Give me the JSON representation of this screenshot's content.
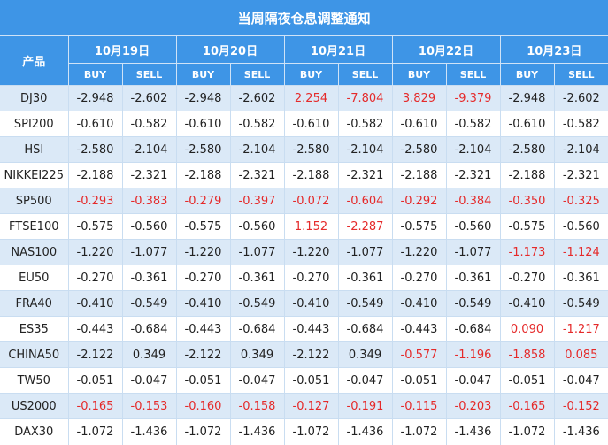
{
  "title": "当周隔夜仓息调整通知",
  "product_header": "产品",
  "buy_label": "BUY",
  "sell_label": "SELL",
  "dates": [
    "10月19日",
    "10月20日",
    "10月21日",
    "10月22日",
    "10月23日"
  ],
  "highlight_color": "#e52a2a",
  "rows": [
    {
      "symbol": "DJ30",
      "values": [
        "-2.948",
        "-2.602",
        "-2.948",
        "-2.602",
        "2.254",
        "-7.804",
        "3.829",
        "-9.379",
        "-2.948",
        "-2.602"
      ],
      "hl": [
        false,
        false,
        false,
        false,
        true,
        true,
        true,
        true,
        false,
        false
      ]
    },
    {
      "symbol": "SPI200",
      "values": [
        "-0.610",
        "-0.582",
        "-0.610",
        "-0.582",
        "-0.610",
        "-0.582",
        "-0.610",
        "-0.582",
        "-0.610",
        "-0.582"
      ],
      "hl": [
        false,
        false,
        false,
        false,
        false,
        false,
        false,
        false,
        false,
        false
      ]
    },
    {
      "symbol": "HSI",
      "values": [
        "-2.580",
        "-2.104",
        "-2.580",
        "-2.104",
        "-2.580",
        "-2.104",
        "-2.580",
        "-2.104",
        "-2.580",
        "-2.104"
      ],
      "hl": [
        false,
        false,
        false,
        false,
        false,
        false,
        false,
        false,
        false,
        false
      ]
    },
    {
      "symbol": "NIKKEI225",
      "values": [
        "-2.188",
        "-2.321",
        "-2.188",
        "-2.321",
        "-2.188",
        "-2.321",
        "-2.188",
        "-2.321",
        "-2.188",
        "-2.321"
      ],
      "hl": [
        false,
        false,
        false,
        false,
        false,
        false,
        false,
        false,
        false,
        false
      ]
    },
    {
      "symbol": "SP500",
      "values": [
        "-0.293",
        "-0.383",
        "-0.279",
        "-0.397",
        "-0.072",
        "-0.604",
        "-0.292",
        "-0.384",
        "-0.350",
        "-0.325"
      ],
      "hl": [
        true,
        true,
        true,
        true,
        true,
        true,
        true,
        true,
        true,
        true
      ]
    },
    {
      "symbol": "FTSE100",
      "values": [
        "-0.575",
        "-0.560",
        "-0.575",
        "-0.560",
        "1.152",
        "-2.287",
        "-0.575",
        "-0.560",
        "-0.575",
        "-0.560"
      ],
      "hl": [
        false,
        false,
        false,
        false,
        true,
        true,
        false,
        false,
        false,
        false
      ]
    },
    {
      "symbol": "NAS100",
      "values": [
        "-1.220",
        "-1.077",
        "-1.220",
        "-1.077",
        "-1.220",
        "-1.077",
        "-1.220",
        "-1.077",
        "-1.173",
        "-1.124"
      ],
      "hl": [
        false,
        false,
        false,
        false,
        false,
        false,
        false,
        false,
        true,
        true
      ]
    },
    {
      "symbol": "EU50",
      "values": [
        "-0.270",
        "-0.361",
        "-0.270",
        "-0.361",
        "-0.270",
        "-0.361",
        "-0.270",
        "-0.361",
        "-0.270",
        "-0.361"
      ],
      "hl": [
        false,
        false,
        false,
        false,
        false,
        false,
        false,
        false,
        false,
        false
      ]
    },
    {
      "symbol": "FRA40",
      "values": [
        "-0.410",
        "-0.549",
        "-0.410",
        "-0.549",
        "-0.410",
        "-0.549",
        "-0.410",
        "-0.549",
        "-0.410",
        "-0.549"
      ],
      "hl": [
        false,
        false,
        false,
        false,
        false,
        false,
        false,
        false,
        false,
        false
      ]
    },
    {
      "symbol": "ES35",
      "values": [
        "-0.443",
        "-0.684",
        "-0.443",
        "-0.684",
        "-0.443",
        "-0.684",
        "-0.443",
        "-0.684",
        "0.090",
        "-1.217"
      ],
      "hl": [
        false,
        false,
        false,
        false,
        false,
        false,
        false,
        false,
        true,
        true
      ]
    },
    {
      "symbol": "CHINA50",
      "values": [
        "-2.122",
        "0.349",
        "-2.122",
        "0.349",
        "-2.122",
        "0.349",
        "-0.577",
        "-1.196",
        "-1.858",
        "0.085"
      ],
      "hl": [
        false,
        false,
        false,
        false,
        false,
        false,
        true,
        true,
        true,
        true
      ]
    },
    {
      "symbol": "TW50",
      "values": [
        "-0.051",
        "-0.047",
        "-0.051",
        "-0.047",
        "-0.051",
        "-0.047",
        "-0.051",
        "-0.047",
        "-0.051",
        "-0.047"
      ],
      "hl": [
        false,
        false,
        false,
        false,
        false,
        false,
        false,
        false,
        false,
        false
      ]
    },
    {
      "symbol": "US2000",
      "values": [
        "-0.165",
        "-0.153",
        "-0.160",
        "-0.158",
        "-0.127",
        "-0.191",
        "-0.115",
        "-0.203",
        "-0.165",
        "-0.152"
      ],
      "hl": [
        true,
        true,
        true,
        true,
        true,
        true,
        true,
        true,
        true,
        true
      ]
    },
    {
      "symbol": "DAX30",
      "values": [
        "-1.072",
        "-1.436",
        "-1.072",
        "-1.436",
        "-1.072",
        "-1.436",
        "-1.072",
        "-1.436",
        "-1.072",
        "-1.436"
      ],
      "hl": [
        false,
        false,
        false,
        false,
        false,
        false,
        false,
        false,
        false,
        false
      ]
    }
  ]
}
